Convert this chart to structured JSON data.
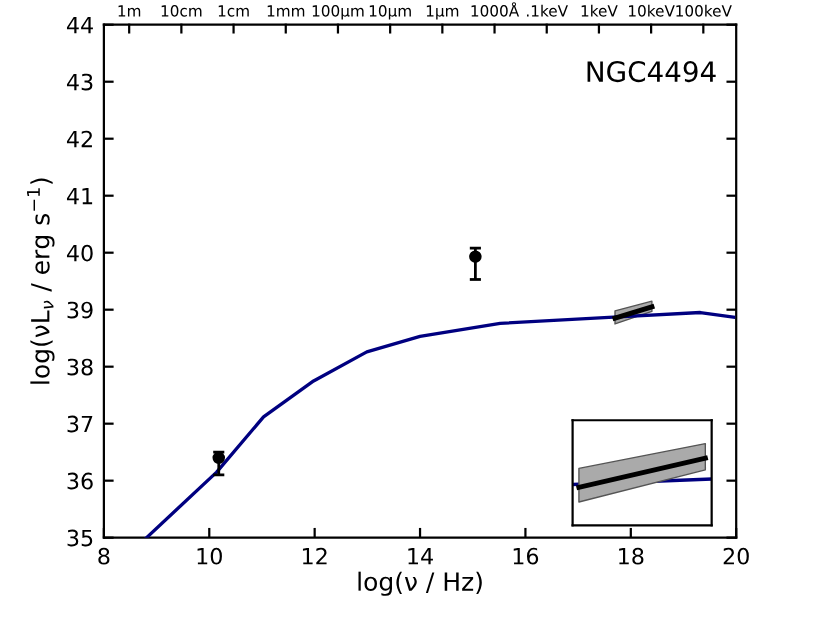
{
  "chart_data": {
    "type": "line",
    "xlabel": "log(ν / Hz)",
    "ylabel": "log(νL$_{ν}$ / erg s$^{−1}$)",
    "annotations": [
      "NGC4494",
      "1m",
      "10cm",
      "1cm",
      "1mm",
      "100μm",
      "10μm",
      "1μm",
      "1000Å",
      ".1keV",
      "1keV",
      "10keV",
      "100keV"
    ],
    "xlim": [
      8,
      20
    ],
    "xticks": [
      8,
      10,
      12,
      14,
      16,
      18,
      20
    ],
    "ylim": [
      35,
      44
    ],
    "yticks": [
      35,
      36,
      37,
      38,
      39,
      40,
      41,
      42,
      43,
      44
    ],
    "series": [
      {
        "color": "#000080",
        "x": [
          8.81,
          10.14,
          11.03,
          11.98,
          12.99,
          14.0,
          15.52,
          17.67,
          19.32,
          19.95
        ],
        "values": [
          35.0,
          36.15,
          37.12,
          37.75,
          38.26,
          38.53,
          38.76,
          38.87,
          38.95,
          38.87
        ]
      },
      {
        "color": "#000000",
        "x": [
          17.7,
          18.4
        ],
        "values": [
          38.85,
          39.05
        ],
        "lower": [
          38.75,
          38.97
        ],
        "upper": [
          38.98,
          39.15
        ]
      },
      {
        "type": "scatter",
        "color": "#000000",
        "marker": "circle",
        "x": [
          10.18,
          15.05
        ],
        "values": [
          36.4,
          39.93
        ],
        "errors": [
          [
            36.1,
            36.5
          ],
          [
            39.53,
            40.08
          ]
        ]
      }
    ]
  }
}
